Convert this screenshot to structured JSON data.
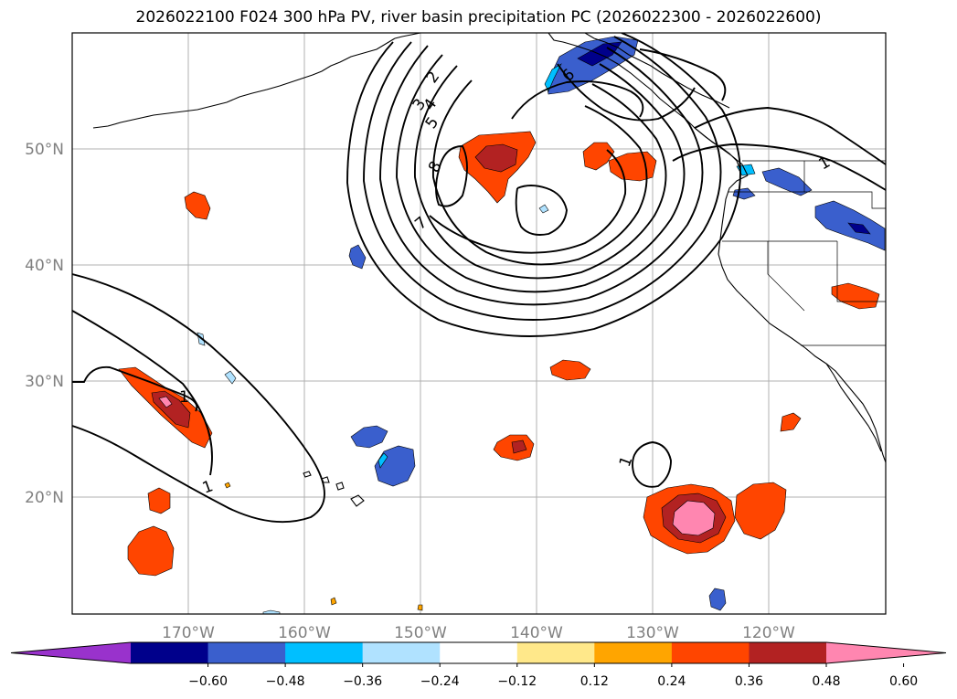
{
  "title": "2026022100 F024 300 hPa PV, river basin precipitation PC (2026022300 - 2026022600)",
  "map": {
    "lon_ticks": [
      "170°W",
      "160°W",
      "150°W",
      "140°W",
      "130°W",
      "120°W"
    ],
    "lat_ticks": [
      "50°N",
      "40°N",
      "30°N",
      "20°N"
    ],
    "pv_contour_labels": [
      "1",
      "2",
      "3",
      "4",
      "5",
      "6",
      "7",
      "8",
      "1",
      "1",
      "1"
    ],
    "grid": true
  },
  "colorbar": {
    "levels": [
      "−0.60",
      "−0.48",
      "−0.36",
      "−0.24",
      "−0.12",
      "0.12",
      "0.24",
      "0.36",
      "0.48",
      "0.60"
    ],
    "colors": [
      "#9932cc",
      "#00008b",
      "#3a5fcd",
      "#00bfff",
      "#b0e2ff",
      "#ffffff",
      "#ffe88a",
      "#ffa500",
      "#ff4500",
      "#b22222",
      "#ff86b0"
    ],
    "extend": "both"
  },
  "colors": {
    "contour": "#000000",
    "coast": "#000000",
    "grid": "#b0b0b0"
  }
}
